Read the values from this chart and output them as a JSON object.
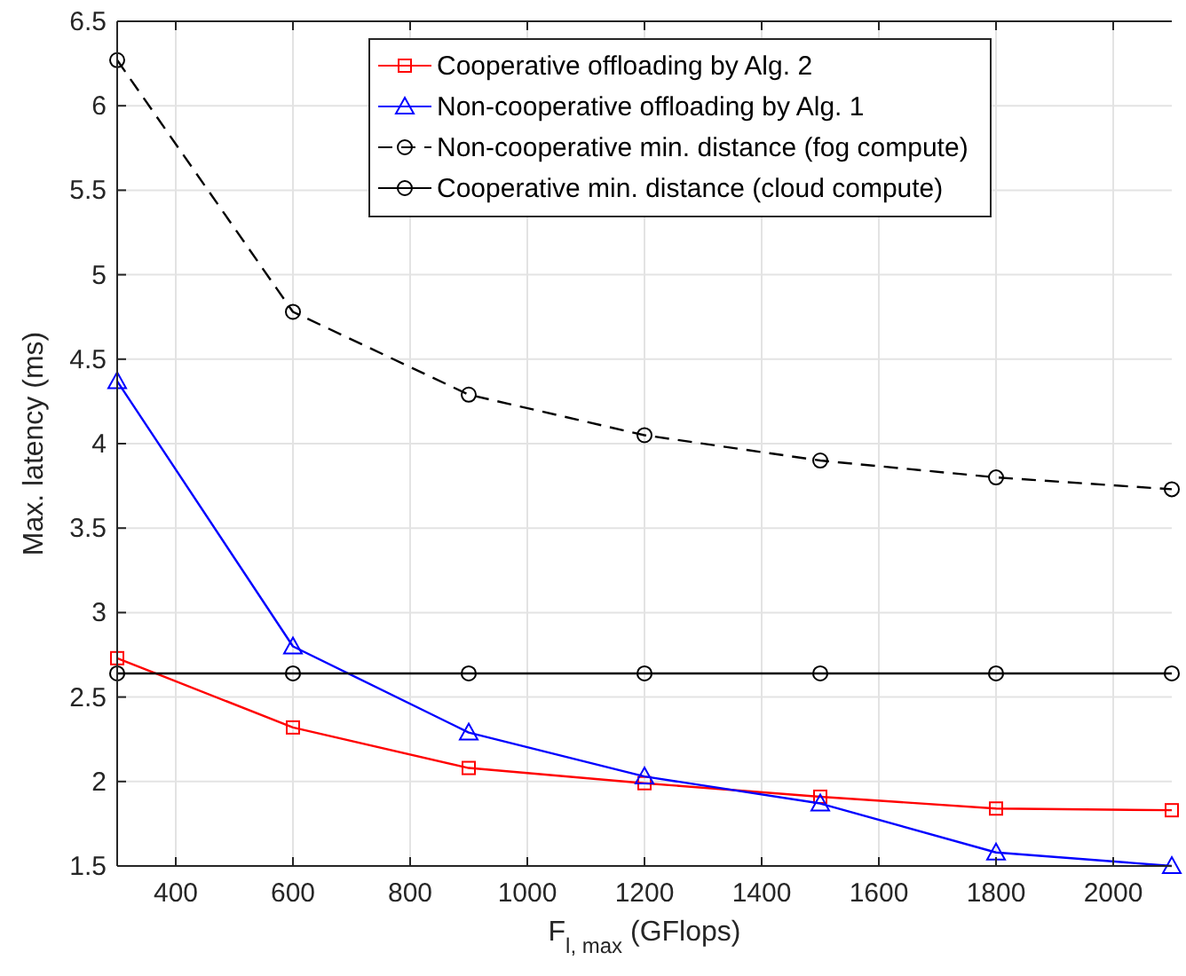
{
  "chart_data": {
    "type": "line",
    "xlabel": "F$_{l, max}$ (GFlops)",
    "ylabel": "Max. latency (ms)",
    "x": [
      300,
      600,
      900,
      1200,
      1500,
      1800,
      2100
    ],
    "xlim": [
      300,
      2100
    ],
    "xticks": [
      400,
      600,
      800,
      1000,
      1200,
      1400,
      1600,
      1800,
      2000
    ],
    "ylim": [
      1.5,
      6.5
    ],
    "yticks": [
      1.5,
      2,
      2.5,
      3,
      3.5,
      4,
      4.5,
      5,
      5.5,
      6,
      6.5
    ],
    "grid": true,
    "legend": "top",
    "series": [
      {
        "name": "Cooperative offloading by Alg. 2",
        "color": "#ff0000",
        "marker": "square",
        "line_style": "solid",
        "values": [
          2.73,
          2.32,
          2.08,
          1.99,
          1.91,
          1.84,
          1.83
        ]
      },
      {
        "name": "Non-cooperative offloading by Alg. 1",
        "color": "#0000ff",
        "marker": "triangle",
        "line_style": "solid",
        "values": [
          4.37,
          2.8,
          2.29,
          2.03,
          1.87,
          1.58,
          1.5
        ]
      },
      {
        "name": "Non-cooperative min. distance (fog compute)",
        "color": "#000000",
        "marker": "circle",
        "line_style": "dashed",
        "values": [
          6.27,
          4.78,
          4.29,
          4.05,
          3.9,
          3.8,
          3.73
        ]
      },
      {
        "name": "Cooperative min. distance (cloud compute)",
        "color": "#000000",
        "marker": "circle",
        "line_style": "solid",
        "values": [
          2.64,
          2.64,
          2.64,
          2.64,
          2.64,
          2.64,
          2.64
        ]
      }
    ]
  }
}
